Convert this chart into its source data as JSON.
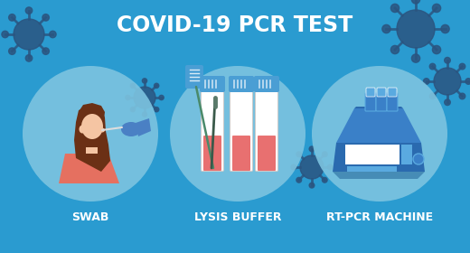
{
  "title": "COVID-19 PCR TEST",
  "title_color": "#FFFFFF",
  "bg_color": "#2A9BD0",
  "circle_color": "#7DC4E0",
  "circle_edge_color": "#8DD4EE",
  "labels": [
    "SWAB",
    "LYSIS BUFFER",
    "RT-PCR MACHINE"
  ],
  "label_color": "#FFFFFF",
  "virus_color": "#2A5580",
  "skin_color": "#F5C5A3",
  "hair_color": "#6B3015",
  "shirt_color": "#E57060",
  "glove_color": "#4A80C4",
  "tube_cap_color": "#4A9ED4",
  "tube_liquid_color": "#E87070",
  "swab_color": "#5A8A6A",
  "machine_dark": "#2A6AAF",
  "machine_mid": "#3A80C8",
  "machine_light": "#5AAAE0",
  "machine_white": "#FFFFFF",
  "machine_vial_color": "#5AAAE0",
  "shadow_color": "#1A5A90"
}
